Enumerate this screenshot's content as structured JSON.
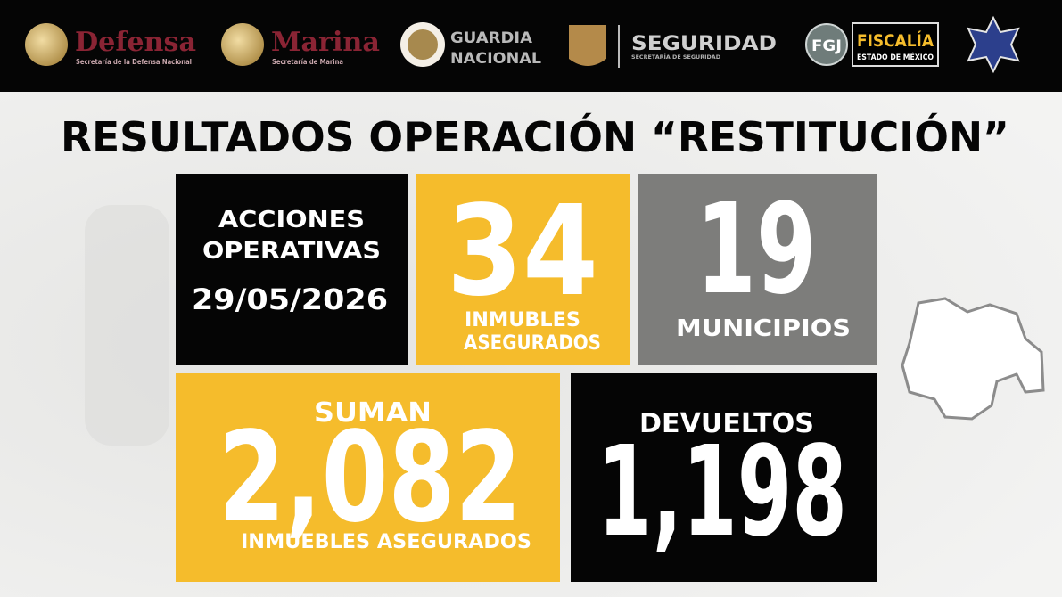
{
  "header": {
    "logos": [
      {
        "name": "Defensa",
        "subtitle": "Secretaría de la Defensa Nacional"
      },
      {
        "name": "Marina",
        "subtitle": "Secretaría de Marina"
      },
      {
        "lines": [
          "GUARDIA",
          "NACIONAL"
        ]
      },
      {
        "name": "SEGURIDAD",
        "subtitle": "SECRETARÍA DE SEGURIDAD"
      },
      {
        "badge": "FGJ",
        "name": "FISCALÍA",
        "subtitle": "ESTADO DE MÉXICO"
      }
    ]
  },
  "title": "RESULTADOS OPERACIÓN “RESTITUCIÓN”",
  "cards": {
    "actions": {
      "lines": [
        "ACCIONES",
        "OPERATIVAS"
      ],
      "date": "29/05/2026"
    },
    "properties": {
      "value": "34",
      "lines": [
        "INMUBLES",
        "ASEGURADOS"
      ]
    },
    "municipalities": {
      "value": "19",
      "label": "MUNICIPIOS"
    },
    "total": {
      "heading": "SUMAN",
      "value": "2,082",
      "label": "INMUEBLES ASEGURADOS"
    },
    "returned": {
      "heading": "DEVUELTOS",
      "value": "1,198"
    }
  }
}
